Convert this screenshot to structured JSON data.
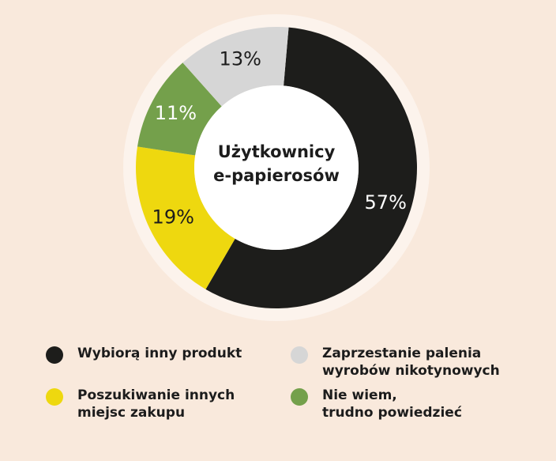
{
  "chart_data": {
    "type": "pie",
    "title": "",
    "center_label": "Użytkownicy\ne-papierosów",
    "categories": [
      "Wybiorą inny produkt",
      "Poszukiwanie innych miejsc zakupu",
      "Nie wiem, trudno powiedzieć",
      "Zaprzestanie palenia wyrobów nikotynowych"
    ],
    "values": [
      57,
      19,
      11,
      13
    ],
    "value_labels": [
      "57%",
      "19%",
      "11%",
      "13%"
    ],
    "colors": [
      "#1d1d1b",
      "#eed80f",
      "#74a04b",
      "#d6d6d6"
    ],
    "legend_position": "bottom"
  },
  "legend": {
    "items": [
      {
        "label": "Wybiorą inny produkt",
        "color": "#1d1d1b"
      },
      {
        "label": "Zaprzestanie palenia\nwyrobów nikotynowych",
        "color": "#d6d6d6"
      },
      {
        "label": "Poszukiwanie innych\nmiejsc zakupu",
        "color": "#eed80f"
      },
      {
        "label": "Nie wiem,\ntrudno powiedzieć",
        "color": "#74a04b"
      }
    ]
  }
}
